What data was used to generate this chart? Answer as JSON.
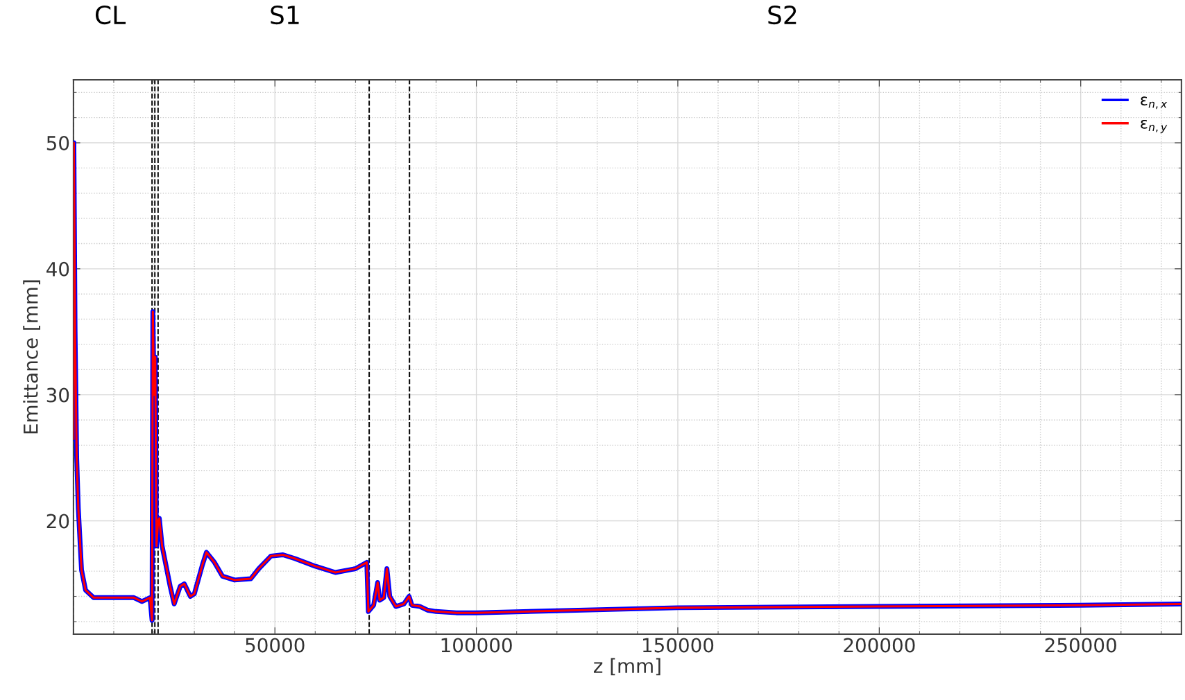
{
  "chart_data": {
    "type": "line",
    "xlabel": "z [mm]",
    "ylabel": "Emittance [mm]",
    "annotations": [
      "CL",
      "S1",
      "S2"
    ],
    "xlim": [
      0,
      275000
    ],
    "ylim": [
      11,
      55
    ],
    "xticks": [
      50000,
      100000,
      150000,
      200000,
      250000
    ],
    "yticks": [
      20,
      30,
      40,
      50
    ],
    "grid": true,
    "legend": "top right",
    "marker": "none",
    "line_style": "solid",
    "x": [
      0,
      100,
      400,
      800,
      1200,
      2000,
      3000,
      5000,
      10000,
      15000,
      17000,
      19000,
      19500,
      19700,
      20000,
      20300,
      20600,
      21000,
      21300,
      22000,
      24000,
      25000,
      26500,
      27500,
      29000,
      30000,
      32000,
      33000,
      35000,
      37000,
      40000,
      44000,
      46000,
      49000,
      52000,
      55000,
      60000,
      65000,
      70000,
      72800,
      73200,
      74500,
      75500,
      76000,
      77000,
      77800,
      78500,
      80000,
      82000,
      83300,
      84000,
      86000,
      88000,
      90000,
      95000,
      100000,
      150000,
      200000,
      250000,
      275000
    ],
    "series": [
      {
        "name": "ε$_{n,x}$",
        "color": "#0000ff",
        "values": [
          26.5,
          50,
          35,
          25,
          21,
          16.1,
          14.5,
          13.9,
          13.9,
          13.9,
          13.6,
          13.9,
          12.1,
          36.6,
          30,
          33,
          18,
          20,
          20.2,
          18,
          14.8,
          13.4,
          14.8,
          15.0,
          14.0,
          14.2,
          16.5,
          17.5,
          16.7,
          15.6,
          15.3,
          15.4,
          16.2,
          17.2,
          17.3,
          17.0,
          16.4,
          15.9,
          16.2,
          16.7,
          12.8,
          13.3,
          15.1,
          13.7,
          13.9,
          16.2,
          14.0,
          13.2,
          13.4,
          14.0,
          13.3,
          13.2,
          12.9,
          12.8,
          12.7,
          12.7,
          13.1,
          13.2,
          13.3,
          13.4
        ]
      },
      {
        "name": "ε$_{n,y}$",
        "color": "#ff0000",
        "values": [
          26.5,
          50,
          35,
          25,
          21,
          16.1,
          14.5,
          13.9,
          13.9,
          13.9,
          13.6,
          13.9,
          12.1,
          36.6,
          30,
          33,
          18,
          20,
          20.2,
          18,
          14.8,
          13.4,
          14.8,
          15.0,
          14.0,
          14.2,
          16.5,
          17.5,
          16.7,
          15.6,
          15.3,
          15.4,
          16.2,
          17.2,
          17.3,
          17.0,
          16.4,
          15.9,
          16.2,
          16.7,
          12.8,
          13.3,
          15.1,
          13.7,
          13.9,
          16.2,
          14.0,
          13.2,
          13.4,
          14.0,
          13.3,
          13.2,
          12.9,
          12.8,
          12.7,
          12.7,
          13.1,
          13.2,
          13.3,
          13.4
        ]
      }
    ],
    "ref_lines": [
      {
        "axis": "x",
        "value": 0,
        "color": "#000000",
        "line_style": "dashed"
      },
      {
        "axis": "x",
        "value": 19500,
        "color": "#000000",
        "line_style": "dashed"
      },
      {
        "axis": "x",
        "value": 20200,
        "color": "#000000",
        "line_style": "dashed"
      },
      {
        "axis": "x",
        "value": 21000,
        "color": "#000000",
        "line_style": "dashed"
      },
      {
        "axis": "x",
        "value": 73400,
        "color": "#000000",
        "line_style": "dashed"
      },
      {
        "axis": "x",
        "value": 83400,
        "color": "#000000",
        "line_style": "dashed"
      }
    ]
  }
}
